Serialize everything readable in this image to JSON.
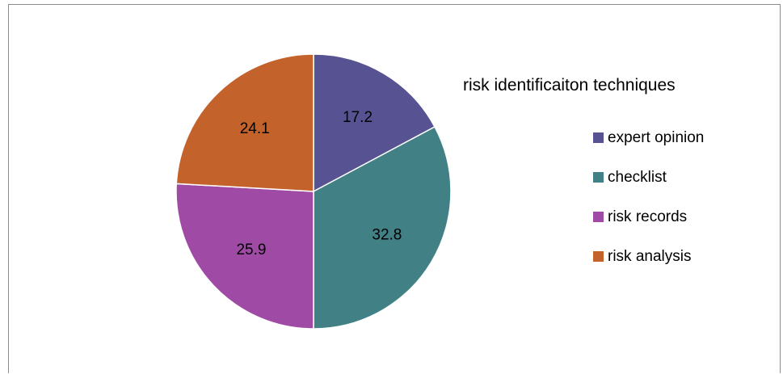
{
  "chart_data": {
    "type": "pie",
    "title": "risk identificaiton techniques",
    "categories": [
      "expert opinion",
      "checklist",
      "risk records",
      "risk analysis"
    ],
    "values": [
      17.2,
      32.8,
      25.9,
      24.1
    ],
    "colors": [
      "#575393",
      "#418186",
      "#9f4ba5",
      "#c4622b"
    ],
    "legend_position": "right",
    "start_angle": "12 o'clock",
    "direction": "clockwise",
    "data_labels": [
      "17.2",
      "32.8",
      "25.9",
      "24.1"
    ]
  }
}
